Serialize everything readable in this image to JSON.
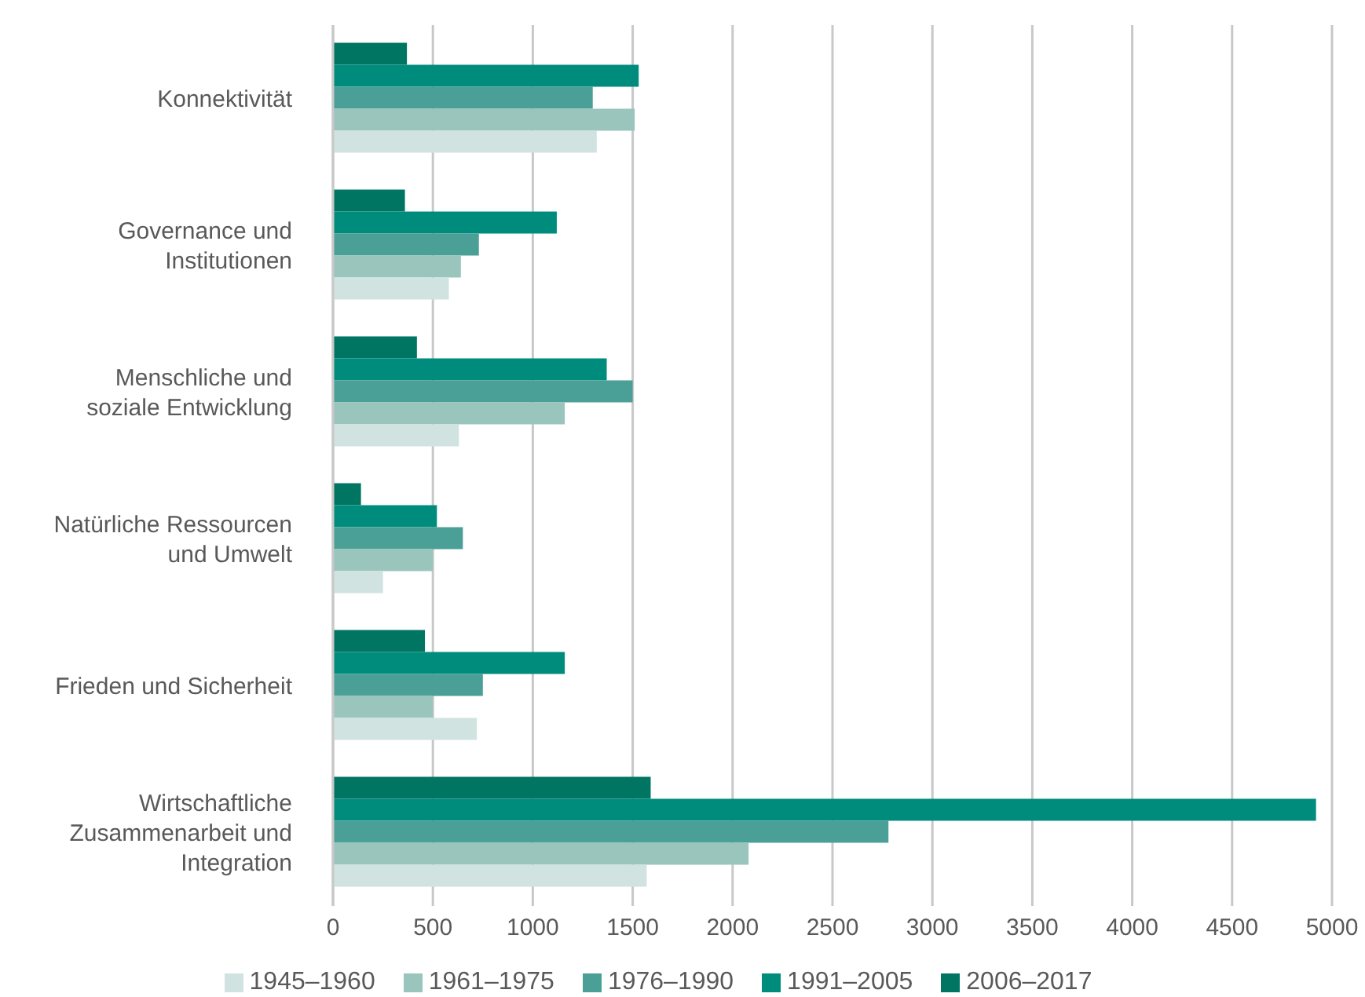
{
  "chart_data": {
    "type": "bar",
    "orientation": "horizontal",
    "categories": [
      "Konnektivität",
      "Governance und Institutionen",
      "Menschliche und soziale Entwicklung",
      "Natürliche Ressourcen und Umwelt",
      "Frieden und Sicherheit",
      "Wirtschaftliche Zusammenarbeit und Integration"
    ],
    "series": [
      {
        "name": "2006–2017",
        "color": "#007562",
        "values": [
          370,
          360,
          420,
          140,
          460,
          1590
        ]
      },
      {
        "name": "1991–2005",
        "color": "#008c7d",
        "values": [
          1530,
          1120,
          1370,
          520,
          1160,
          4920
        ]
      },
      {
        "name": "1976–1990",
        "color": "#4aa096",
        "values": [
          1300,
          730,
          1500,
          650,
          750,
          2780
        ]
      },
      {
        "name": "1961–1975",
        "color": "#99c5bd",
        "values": [
          1510,
          640,
          1160,
          500,
          500,
          2080
        ]
      },
      {
        "name": "1945–1960",
        "color": "#d0e3e0",
        "values": [
          1320,
          580,
          630,
          250,
          720,
          1570
        ]
      }
    ],
    "xlim": [
      0,
      5000
    ],
    "xticks": [
      0,
      500,
      1000,
      1500,
      2000,
      2500,
      3000,
      3500,
      4000,
      4500,
      5000
    ],
    "grid": "x",
    "legend": "bottom"
  }
}
